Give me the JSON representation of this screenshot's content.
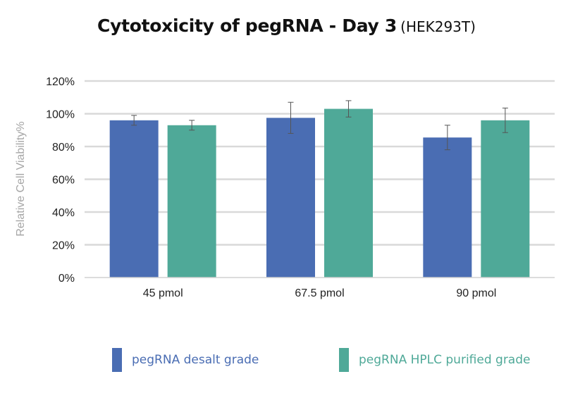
{
  "chart_data": {
    "type": "bar",
    "title": "Cytotoxicity of pegRNA - Day 3",
    "subtitle": "(HEK293T)",
    "xlabel": "",
    "ylabel": "Relative Cell Viability%",
    "ylim": [
      0,
      120
    ],
    "yticks": [
      "0%",
      "20%",
      "40%",
      "60%",
      "80%",
      "100%",
      "120%"
    ],
    "grid": true,
    "legend_position": "bottom",
    "categories": [
      "45 pmol",
      "67.5 pmol",
      "90 pmol"
    ],
    "series": [
      {
        "name": "pegRNA desalt grade",
        "color": "#4a6db3",
        "values": [
          96,
          97.5,
          85.5
        ],
        "error": [
          3,
          9.5,
          7.5
        ]
      },
      {
        "name": "pegRNA HPLC purified grade",
        "color": "#4fa998",
        "values": [
          93,
          103,
          96
        ],
        "error": [
          3,
          5,
          7.5
        ]
      }
    ]
  }
}
